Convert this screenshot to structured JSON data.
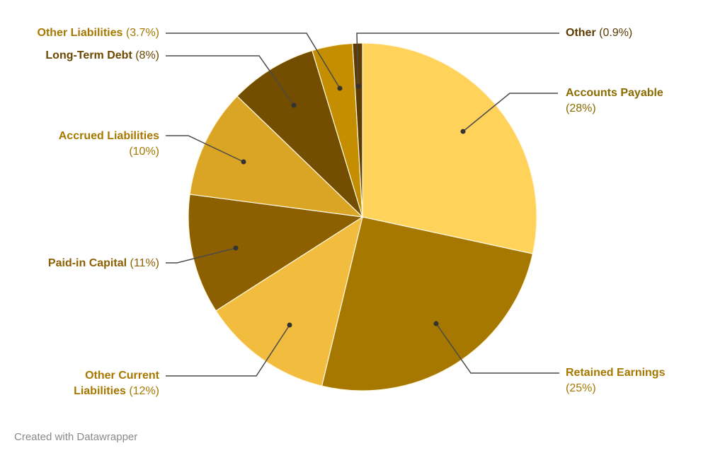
{
  "chart_data": {
    "type": "pie",
    "title": "",
    "start_angle": 0,
    "direction": "clockwise",
    "center": [
      512,
      307
    ],
    "radius": 246,
    "slices": [
      {
        "label": "Accounts Payable",
        "value": 28,
        "pct_text": "(28%)",
        "color": "#FFD25A",
        "text_color": "#8B6A00"
      },
      {
        "label": "Retained Earnings",
        "value": 25,
        "pct_text": "(25%)",
        "color": "#A67800",
        "text_color": "#A67800"
      },
      {
        "label": "Other Current Liabilities",
        "value": 12,
        "pct_text": "(12%)",
        "color": "#F2BC3E",
        "text_color": "#A67800"
      },
      {
        "label": "Paid-in Capital",
        "value": 11,
        "pct_text": "(11%)",
        "color": "#8C6000",
        "text_color": "#8C6000"
      },
      {
        "label": "Accrued Liabilities",
        "value": 10,
        "pct_text": "(10%)",
        "color": "#DAA524",
        "text_color": "#A67800"
      },
      {
        "label": "Long-Term Debt",
        "value": 8,
        "pct_text": "(8%)",
        "color": "#734E00",
        "text_color": "#6B4700"
      },
      {
        "label": "Other Liabilities",
        "value": 3.7,
        "pct_text": "(3.7%)",
        "color": "#C48E00",
        "text_color": "#A67800"
      },
      {
        "label": "Other",
        "value": 0.9,
        "pct_text": "(0.9%)",
        "color": "#5C3A00",
        "text_color": "#5C3A00"
      }
    ],
    "legend": "none (direct labels with leader lines)"
  },
  "labels": {
    "accounts_payable": {
      "name": "Accounts Payable",
      "pct": "(28%)"
    },
    "retained_earnings": {
      "name": "Retained Earnings",
      "pct": "(25%)"
    },
    "other_current_1": {
      "name": "Other Current"
    },
    "other_current_2": {
      "name": "Liabilities",
      "pct": "(12%)"
    },
    "paid_in_capital": {
      "name": "Paid-in Capital",
      "pct": "(11%)"
    },
    "accrued": {
      "name": "Accrued Liabilities",
      "pct": "(10%)"
    },
    "long_term_debt": {
      "name": "Long-Term Debt",
      "pct": "(8%)"
    },
    "other_liabilities": {
      "name": "Other Liabilities",
      "pct": "(3.7%)"
    },
    "other": {
      "name": "Other",
      "pct": "(0.9%)"
    }
  },
  "footer": {
    "credit": "Created with Datawrapper"
  }
}
